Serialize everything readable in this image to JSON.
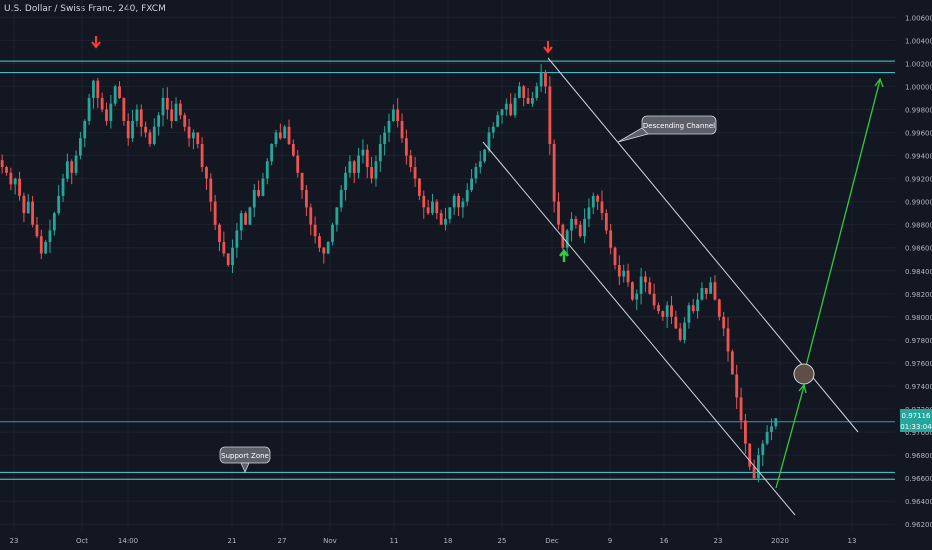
{
  "header": {
    "title": "U.S. Dollar / Swiss Franc, 240, FXCM"
  },
  "colors": {
    "background": "#131722",
    "up": "#26a69a",
    "down": "#ef5350",
    "grid": "#1e222d",
    "axis_text": "#b2b5be",
    "level_line": "#4dd0e1",
    "annotation_green": "#2ecc40",
    "annotation_red": "#ff3b30",
    "channel": "#d1d4dc",
    "price_badge": "#26a69a"
  },
  "annotations": {
    "channel_label": "Descending Channel",
    "support_label": "Support Zone",
    "current_price": "0.97116",
    "countdown": "01:33:04"
  },
  "chart_data": {
    "type": "candlestick",
    "title": "U.S. Dollar / Swiss Franc, 240, FXCM",
    "xlabel": "",
    "ylabel": "",
    "ylim": [
      0.9615,
      1.0075
    ],
    "y_ticks": [
      "1.00600",
      "1.00400",
      "1.00200",
      "1.00000",
      "0.99800",
      "0.99600",
      "0.99400",
      "0.99200",
      "0.99000",
      "0.98800",
      "0.98600",
      "0.98400",
      "0.98200",
      "0.98000",
      "0.97800",
      "0.97600",
      "0.97400",
      "0.97200",
      "0.97000",
      "0.96800",
      "0.96600",
      "0.96400",
      "0.96200"
    ],
    "x_ticks": [
      "23",
      "Oct",
      "14:00",
      "21",
      "27",
      "Nov",
      "11",
      "18",
      "25",
      "Dec",
      "9",
      "16",
      "23",
      "2020",
      "13"
    ],
    "grid": true,
    "levels": [
      1.0022,
      1.0012,
      0.9709,
      0.9665,
      0.9659
    ],
    "close_series": [
      0.993,
      0.9925,
      0.9915,
      0.992,
      0.9905,
      0.989,
      0.99,
      0.988,
      0.987,
      0.9855,
      0.9865,
      0.9875,
      0.989,
      0.9905,
      0.992,
      0.9935,
      0.9925,
      0.994,
      0.9955,
      0.997,
      0.999,
      1.0005,
      0.999,
      0.998,
      0.997,
      0.9985,
      1.0,
      0.999,
      0.997,
      0.9955,
      0.997,
      0.998,
      0.9965,
      0.996,
      0.995,
      0.9965,
      0.9975,
      0.999,
      0.998,
      0.997,
      0.9985,
      0.9975,
      0.9965,
      0.9955,
      0.996,
      0.995,
      0.993,
      0.992,
      0.99,
      0.988,
      0.9865,
      0.9855,
      0.9845,
      0.986,
      0.9875,
      0.989,
      0.988,
      0.9895,
      0.991,
      0.9905,
      0.992,
      0.9935,
      0.995,
      0.996,
      0.9955,
      0.9965,
      0.995,
      0.994,
      0.9925,
      0.991,
      0.9895,
      0.988,
      0.987,
      0.986,
      0.9855,
      0.9865,
      0.988,
      0.9895,
      0.991,
      0.9925,
      0.9935,
      0.9925,
      0.994,
      0.9945,
      0.993,
      0.992,
      0.9935,
      0.995,
      0.996,
      0.997,
      0.998,
      0.997,
      0.9955,
      0.994,
      0.993,
      0.992,
      0.9905,
      0.9895,
      0.989,
      0.99,
      0.989,
      0.988,
      0.9885,
      0.9895,
      0.9905,
      0.9895,
      0.99,
      0.991,
      0.992,
      0.993,
      0.9935,
      0.9945,
      0.996,
      0.9965,
      0.9975,
      0.998,
      0.9985,
      0.9975,
      0.999,
      1.0,
      0.999,
      0.9985,
      0.999,
      1.0,
      1.0012,
      1.0,
      0.995,
      0.99,
      0.988,
      0.986,
      0.9875,
      0.9885,
      0.988,
      0.987,
      0.9885,
      0.9895,
      0.9905,
      0.99,
      0.989,
      0.9875,
      0.986,
      0.9845,
      0.9835,
      0.984,
      0.983,
      0.9815,
      0.982,
      0.9835,
      0.983,
      0.982,
      0.981,
      0.9805,
      0.98,
      0.981,
      0.98,
      0.979,
      0.978,
      0.9795,
      0.981,
      0.9805,
      0.9815,
      0.9825,
      0.982,
      0.983,
      0.9815,
      0.98,
      0.979,
      0.977,
      0.975,
      0.973,
      0.971,
      0.969,
      0.967,
      0.966,
      0.968,
      0.969,
      0.97,
      0.9705,
      0.9712
    ]
  }
}
